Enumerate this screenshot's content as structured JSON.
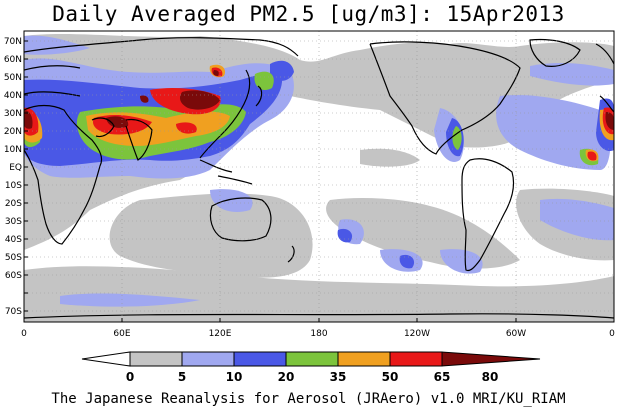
{
  "title": "Daily Averaged PM2.5 [ug/m3]: 15Apr2013",
  "credit": "The Japanese Reanalysis for Aerosol (JRAero) v1.0 MRI/KU_RIAM",
  "lat_labels": [
    "70N",
    "60N",
    "50N",
    "40N",
    "30N",
    "20N",
    "10N",
    "EQ",
    "10S",
    "20S",
    "30S",
    "40S",
    "50S",
    "60S",
    "70S"
  ],
  "lon_labels": [
    "0",
    "60E",
    "120E",
    "180",
    "120W",
    "60W",
    "0"
  ],
  "colorbar": {
    "ticks": [
      "0",
      "5",
      "10",
      "20",
      "35",
      "50",
      "65",
      "80"
    ],
    "colors": [
      "#ffffff",
      "#c4c4c4",
      "#a0a8f0",
      "#4a58e6",
      "#7cc43c",
      "#f0a020",
      "#e81818",
      "#7a0a0a"
    ]
  },
  "map_colors": {
    "ocean": "#ffffff",
    "c5": "#c4c4c4",
    "c10": "#a0a8f0",
    "c20": "#4a58e6",
    "c35": "#7cc43c",
    "c50": "#f0a020",
    "c65": "#e81818",
    "c80": "#7a0a0a",
    "coast": "#000000"
  }
}
